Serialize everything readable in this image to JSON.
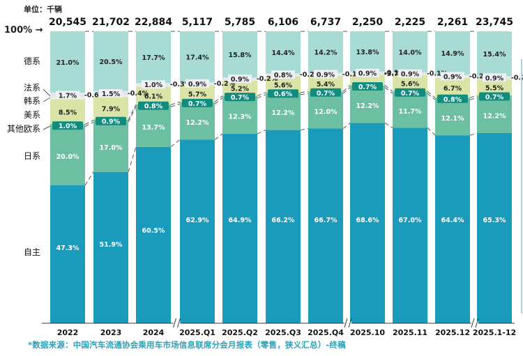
{
  "chart_data": {
    "type": "bar",
    "stacked": true,
    "normalized": true,
    "unit_label": "单位：千辆",
    "top_axis_label": "100%",
    "categories": [
      "2022",
      "2023",
      "2024",
      "2025.Q1",
      "2025.Q2",
      "2025.Q3",
      "2025.Q4",
      "2025.10",
      "2025.11",
      "2025.12",
      "2025.1-12"
    ],
    "totals": [
      "20,545",
      "21,702",
      "22,884",
      "5,117",
      "5,785",
      "6,106",
      "6,737",
      "2,250",
      "2,225",
      "2,261",
      "23,745"
    ],
    "axis_breaks_after": [
      "2024",
      "2025.Q4",
      "2025.12"
    ],
    "series": [
      {
        "name": "自主",
        "color": "#1a9bbb",
        "label_color": "#ffffff",
        "values": [
          47.3,
          51.9,
          60.5,
          62.9,
          64.9,
          66.2,
          66.7,
          68.6,
          67.0,
          64.4,
          65.3
        ]
      },
      {
        "name": "日系",
        "color": "#6cbfa0",
        "label_color": "#ffffff",
        "values": [
          20.0,
          17.0,
          13.7,
          12.2,
          12.3,
          12.2,
          12.0,
          12.2,
          11.7,
          12.1,
          12.2
        ]
      },
      {
        "name": "其他欧系",
        "color": "#6cbfa0",
        "label_color": "#ffffff",
        "badge_color": "#138c80",
        "values": [
          1.0,
          0.9,
          0.8,
          0.7,
          0.7,
          0.6,
          0.7,
          0.7,
          0.7,
          0.8,
          0.7
        ]
      },
      {
        "name": "美系",
        "color": "#d9e4a6",
        "label_color": "#222222",
        "values": [
          8.5,
          7.9,
          6.1,
          5.7,
          5.2,
          5.6,
          5.4,
          3.7,
          5.6,
          6.7,
          5.5
        ]
      },
      {
        "name": "韩系",
        "color": "#eef0ee",
        "label_color": "#222222",
        "values": [
          0.6,
          0.4,
          0.3,
          0.2,
          0.2,
          0.2,
          0.1,
          0.1,
          0.1,
          0.2,
          0.2
        ]
      },
      {
        "name": "法系",
        "color": "#e4e8ee",
        "label_color": "#222222",
        "values": [
          1.7,
          1.5,
          1.0,
          0.9,
          0.9,
          0.8,
          0.9,
          0.9,
          0.9,
          0.9,
          0.9
        ]
      },
      {
        "name": "德系",
        "color": "#a8dbd3",
        "label_color": "#222222",
        "values": [
          21.0,
          20.5,
          17.7,
          17.4,
          15.8,
          14.4,
          14.2,
          13.8,
          14.0,
          14.9,
          15.4
        ]
      }
    ],
    "legend_placement": "left",
    "ylim": [
      0,
      100
    ]
  },
  "footer": {
    "source": "*数据来源：中国汽车流通协会乘用车市场信息联席分会月报表（零售，狭义汇总）-终稿"
  }
}
